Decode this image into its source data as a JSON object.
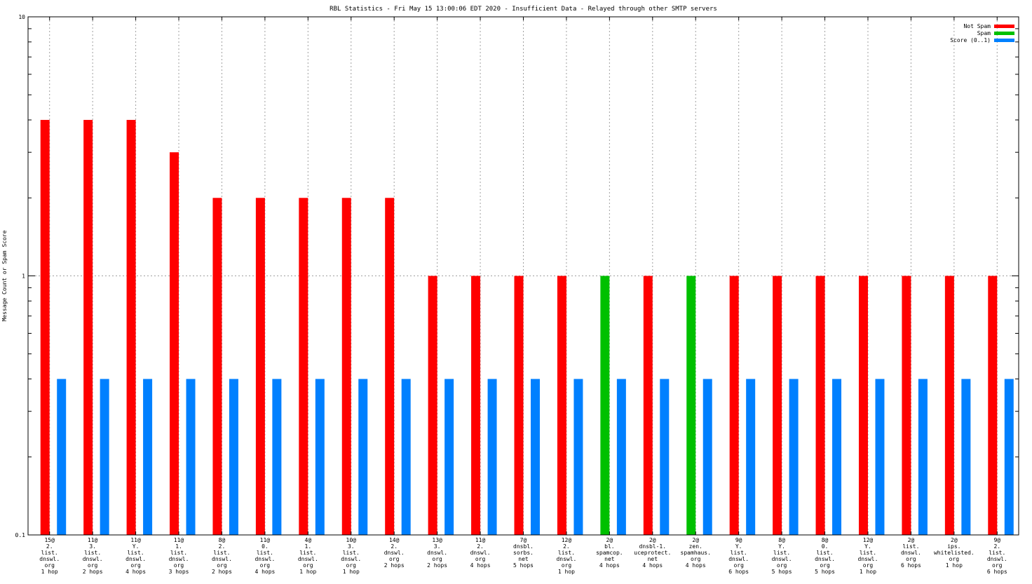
{
  "chart_data": {
    "type": "bar",
    "title": "RBL Statistics - Fri May 15 13:00:06 EDT 2020 - Insufficient Data - Relayed through other SMTP servers",
    "ylabel": "Message Count or Spam Score",
    "xlabel": "",
    "yscale": "log",
    "ylim": [
      0.1,
      10
    ],
    "yticks": [
      {
        "value": 0.1,
        "label": "0.1"
      },
      {
        "value": 1,
        "label": "1"
      },
      {
        "value": 10,
        "label": "10"
      }
    ],
    "grid": true,
    "legend_position": "top-right",
    "categories": [
      [
        "15@",
        "2.",
        "list.",
        "dnswl.",
        "org",
        "1 hop"
      ],
      [
        "11@",
        "3.",
        "list.",
        "dnswl.",
        "org",
        "2 hops"
      ],
      [
        "11@",
        "Y.",
        "list.",
        "dnswl.",
        "org",
        "4 hops"
      ],
      [
        "11@",
        "1.",
        "list.",
        "dnswl.",
        "org",
        "3 hops"
      ],
      [
        "8@",
        "2.",
        "list.",
        "dnswl.",
        "org",
        "2 hops"
      ],
      [
        "11@",
        "0.",
        "list.",
        "dnswl.",
        "org",
        "4 hops"
      ],
      [
        "4@",
        "1.",
        "list.",
        "dnswl.",
        "org",
        "1 hop"
      ],
      [
        "10@",
        "3.",
        "list.",
        "dnswl.",
        "org",
        "1 hop"
      ],
      [
        "14@",
        "2.",
        "dnswl.",
        "org",
        "2 hops"
      ],
      [
        "13@",
        "3.",
        "dnswl.",
        "org",
        "2 hops"
      ],
      [
        "11@",
        "2.",
        "dnswl.",
        "org",
        "4 hops"
      ],
      [
        "7@",
        "dnsbl.",
        "sorbs.",
        "net",
        "5 hops"
      ],
      [
        "12@",
        "2.",
        "list.",
        "dnswl.",
        "org",
        "1 hop"
      ],
      [
        "2@",
        "bl.",
        "spamcop.",
        "net",
        "4 hops"
      ],
      [
        "2@",
        "dnsbl-1.",
        "uceprotect.",
        "net",
        "4 hops"
      ],
      [
        "2@",
        "zen.",
        "spamhaus.",
        "org",
        "4 hops"
      ],
      [
        "9@",
        "Y.",
        "list.",
        "dnswl.",
        "org",
        "6 hops"
      ],
      [
        "8@",
        "Y.",
        "list.",
        "dnswl.",
        "org",
        "5 hops"
      ],
      [
        "8@",
        "0.",
        "list.",
        "dnswl.",
        "org",
        "5 hops"
      ],
      [
        "12@",
        "Y.",
        "list.",
        "dnswl.",
        "org",
        "1 hop"
      ],
      [
        "2@",
        "list.",
        "dnswl.",
        "org",
        "6 hops"
      ],
      [
        "2@",
        "ips.",
        "whitelisted.",
        "org",
        "1 hop"
      ],
      [
        "9@",
        "2.",
        "list.",
        "dnswl.",
        "org",
        "6 hops"
      ]
    ],
    "series": [
      {
        "name": "Not Spam",
        "color": "#ff0000",
        "values": [
          4,
          4,
          4,
          3,
          2,
          2,
          2,
          2,
          2,
          1,
          1,
          1,
          1,
          null,
          1,
          null,
          1,
          1,
          1,
          1,
          1,
          1,
          1
        ]
      },
      {
        "name": "Spam",
        "color": "#00c000",
        "values": [
          null,
          null,
          null,
          null,
          null,
          null,
          null,
          null,
          null,
          null,
          null,
          null,
          null,
          1,
          null,
          1,
          null,
          null,
          null,
          null,
          null,
          null,
          null
        ]
      },
      {
        "name": "Score (0..1)",
        "color": "#0080ff",
        "values": [
          0.4,
          0.4,
          0.4,
          0.4,
          0.4,
          0.4,
          0.4,
          0.4,
          0.4,
          0.4,
          0.4,
          0.4,
          0.4,
          0.4,
          0.4,
          0.4,
          0.4,
          0.4,
          0.4,
          0.4,
          0.4,
          0.4,
          0.4
        ]
      }
    ]
  }
}
